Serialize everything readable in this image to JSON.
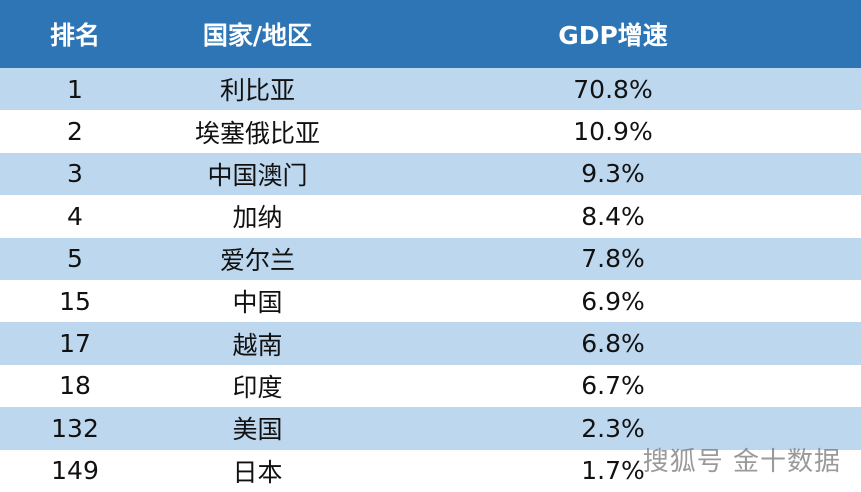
{
  "table": {
    "header": [
      "排名",
      "国家/地区",
      "GDP增速"
    ],
    "rows": [
      [
        "1",
        "利比亚",
        "70.8%"
      ],
      [
        "2",
        "埃塞俄比亚",
        "10.9%"
      ],
      [
        "3",
        "中国澳门",
        "9.3%"
      ],
      [
        "4",
        "加纳",
        "8.4%"
      ],
      [
        "5",
        "爱尔兰",
        "7.8%"
      ],
      [
        "15",
        "中国",
        "6.9%"
      ],
      [
        "17",
        "越南",
        "6.8%"
      ],
      [
        "18",
        "印度",
        "6.7%"
      ],
      [
        "132",
        "美国",
        "2.3%"
      ],
      [
        "149",
        "日本",
        "1.7%"
      ]
    ]
  },
  "watermark": "搜狐号 金十数据"
}
